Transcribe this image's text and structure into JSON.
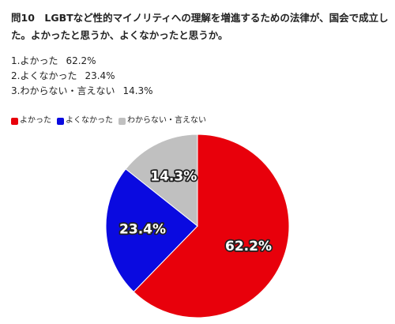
{
  "question": {
    "text": "問10　LGBTなど性的マイノリティへの理解を増進するための法律が、国会で成立した。よかったと思うか、よくなかったと思うか。"
  },
  "results": [
    {
      "label": "1.よかった",
      "value": "62.2%"
    },
    {
      "label": "2.よくなかった",
      "value": "23.4%"
    },
    {
      "label": "3.わからない・言えない",
      "value": "14.3%"
    }
  ],
  "chart_data": {
    "type": "pie",
    "title": "",
    "legend_position": "top-left",
    "slices": [
      {
        "name": "よかった",
        "value": 62.2,
        "label": "62.2%",
        "color": "#e8000b"
      },
      {
        "name": "よくなかった",
        "value": 23.4,
        "label": "23.4%",
        "color": "#0a0ae0"
      },
      {
        "name": "わからない・言えない",
        "value": 14.3,
        "label": "14.3%",
        "color": "#c0c0c0"
      }
    ]
  }
}
